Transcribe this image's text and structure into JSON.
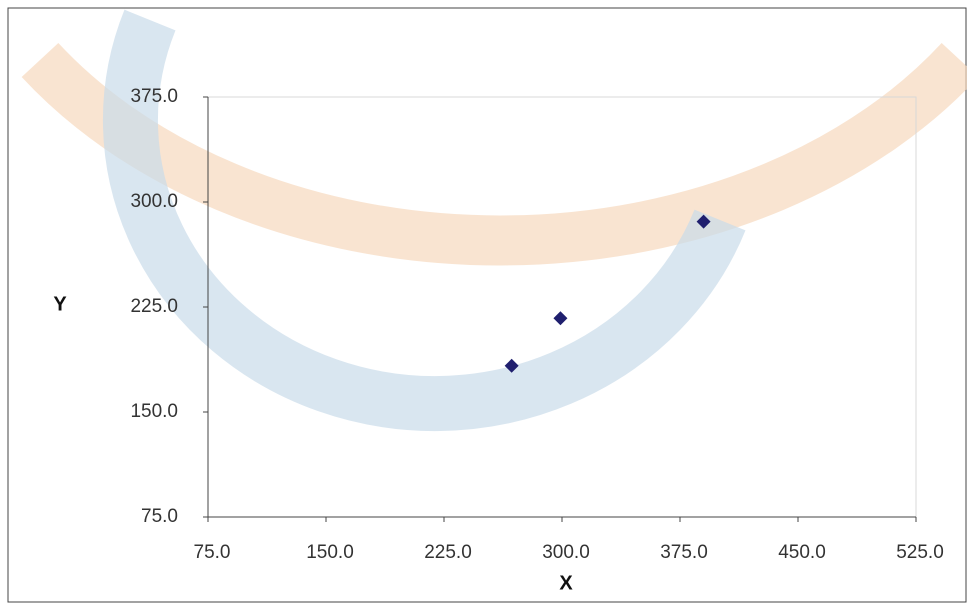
{
  "chart_data": {
    "type": "scatter",
    "x_label": "X",
    "y_label": "Y",
    "x": [
      268,
      299,
      390
    ],
    "values": [
      183,
      217,
      286
    ],
    "color": "#1f1f6e",
    "xlim": [
      75,
      525
    ],
    "ylim": [
      75,
      375
    ],
    "xticks": [
      {
        "value": 75,
        "label": "75.0"
      },
      {
        "value": 150,
        "label": "150.0"
      },
      {
        "value": 225,
        "label": "225.0"
      },
      {
        "value": 300,
        "label": "300.0"
      },
      {
        "value": 375,
        "label": "375.0"
      },
      {
        "value": 450,
        "label": "450.0"
      },
      {
        "value": 525,
        "label": "525.0"
      }
    ],
    "yticks": [
      {
        "value": 75,
        "label": "75.0"
      },
      {
        "value": 150,
        "label": "150.0"
      },
      {
        "value": 225,
        "label": "225.0"
      },
      {
        "value": 300,
        "label": "300.0"
      },
      {
        "value": 375,
        "label": "375.0"
      }
    ],
    "grid": false
  }
}
